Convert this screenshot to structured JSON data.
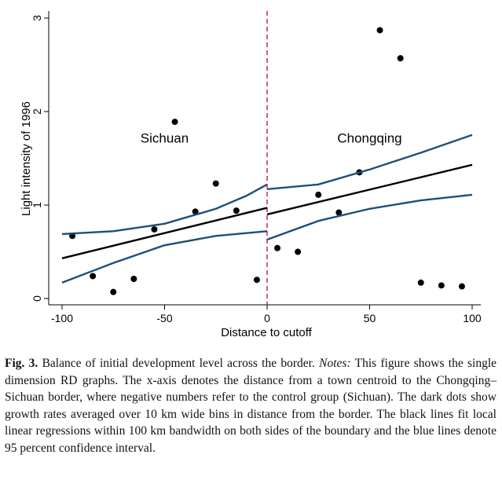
{
  "chart_data": {
    "type": "scatter",
    "title": "",
    "xlabel": "Distance to cutoff",
    "ylabel": "Light intensity of 1996",
    "xlim": [
      -100,
      100
    ],
    "ylim": [
      0,
      3
    ],
    "xticks": [
      -100,
      -50,
      0,
      50,
      100
    ],
    "yticks": [
      0,
      1,
      2,
      3
    ],
    "cutoff": 0,
    "annotations": [
      {
        "text": "Sichuan",
        "x": -50,
        "y": 1.67
      },
      {
        "text": "Chongqing",
        "x": 50,
        "y": 1.67
      }
    ],
    "series": [
      {
        "name": "Binned means",
        "color": "#000000",
        "points": [
          {
            "x": -95,
            "y": 0.67
          },
          {
            "x": -85,
            "y": 0.24
          },
          {
            "x": -75,
            "y": 0.07
          },
          {
            "x": -65,
            "y": 0.21
          },
          {
            "x": -55,
            "y": 0.74
          },
          {
            "x": -45,
            "y": 1.89
          },
          {
            "x": -35,
            "y": 0.93
          },
          {
            "x": -25,
            "y": 1.23
          },
          {
            "x": -15,
            "y": 0.94
          },
          {
            "x": -5,
            "y": 0.2
          },
          {
            "x": 5,
            "y": 0.54
          },
          {
            "x": 15,
            "y": 0.5
          },
          {
            "x": 25,
            "y": 1.11
          },
          {
            "x": 35,
            "y": 0.92
          },
          {
            "x": 45,
            "y": 1.35
          },
          {
            "x": 55,
            "y": 2.87
          },
          {
            "x": 65,
            "y": 2.57
          },
          {
            "x": 75,
            "y": 0.17
          },
          {
            "x": 85,
            "y": 0.14
          },
          {
            "x": 95,
            "y": 0.13
          }
        ]
      },
      {
        "name": "Local linear fit (left)",
        "color": "#000000",
        "points": [
          {
            "x": -100,
            "y": 0.43
          },
          {
            "x": 0,
            "y": 0.97
          }
        ]
      },
      {
        "name": "Local linear fit (right)",
        "color": "#000000",
        "points": [
          {
            "x": 0,
            "y": 0.9
          },
          {
            "x": 100,
            "y": 1.43
          }
        ]
      },
      {
        "name": "95% CI upper (left)",
        "color": "#1f4e79",
        "points": [
          {
            "x": -100,
            "y": 0.69
          },
          {
            "x": -75,
            "y": 0.72
          },
          {
            "x": -50,
            "y": 0.8
          },
          {
            "x": -25,
            "y": 0.96
          },
          {
            "x": -10,
            "y": 1.1
          },
          {
            "x": 0,
            "y": 1.22
          }
        ]
      },
      {
        "name": "95% CI lower (left)",
        "color": "#1f4e79",
        "points": [
          {
            "x": -100,
            "y": 0.17
          },
          {
            "x": -75,
            "y": 0.38
          },
          {
            "x": -50,
            "y": 0.57
          },
          {
            "x": -25,
            "y": 0.67
          },
          {
            "x": -10,
            "y": 0.7
          },
          {
            "x": 0,
            "y": 0.72
          }
        ]
      },
      {
        "name": "95% CI upper (right)",
        "color": "#1f4e79",
        "points": [
          {
            "x": 0,
            "y": 1.17
          },
          {
            "x": 25,
            "y": 1.22
          },
          {
            "x": 50,
            "y": 1.38
          },
          {
            "x": 75,
            "y": 1.56
          },
          {
            "x": 100,
            "y": 1.75
          }
        ]
      },
      {
        "name": "95% CI lower (right)",
        "color": "#1f4e79",
        "points": [
          {
            "x": 0,
            "y": 0.63
          },
          {
            "x": 25,
            "y": 0.83
          },
          {
            "x": 50,
            "y": 0.96
          },
          {
            "x": 75,
            "y": 1.05
          },
          {
            "x": 100,
            "y": 1.11
          }
        ]
      }
    ]
  },
  "caption": {
    "label": "Fig. 3.",
    "text1": " Balance of initial development level across the border. ",
    "notes_label": "Notes:",
    "text2": " This figure shows the single dimension RD graphs. The x-axis denotes the distance from a town centroid to the Chongqing–Sichuan border, where negative numbers refer to the control group (Sichuan). The dark dots show growth rates averaged over 10 km wide bins in distance from the border. The black lines fit local linear regressions within 100 km bandwidth on both sides of the boundary and the blue lines denote 95 percent confidence interval."
  }
}
